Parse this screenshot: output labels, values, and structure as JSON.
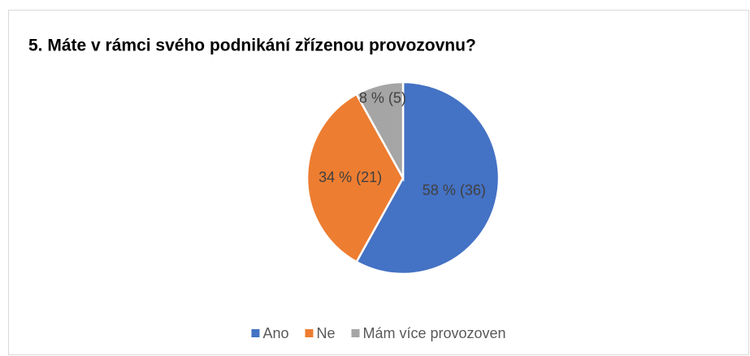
{
  "chart_data": {
    "type": "pie",
    "title": "5. Máte v rámci svého podnikání zřízenou provozovnu?",
    "categories": [
      "Ano",
      "Ne",
      "Mám více provozoven"
    ],
    "values": [
      36,
      21,
      5
    ],
    "value_labels": [
      "58 % (36)",
      "34 % (21)",
      "8 % (5)"
    ],
    "colors": [
      "#4472c4",
      "#ed7d31",
      "#a5a5a5"
    ],
    "legend": "bottom"
  }
}
